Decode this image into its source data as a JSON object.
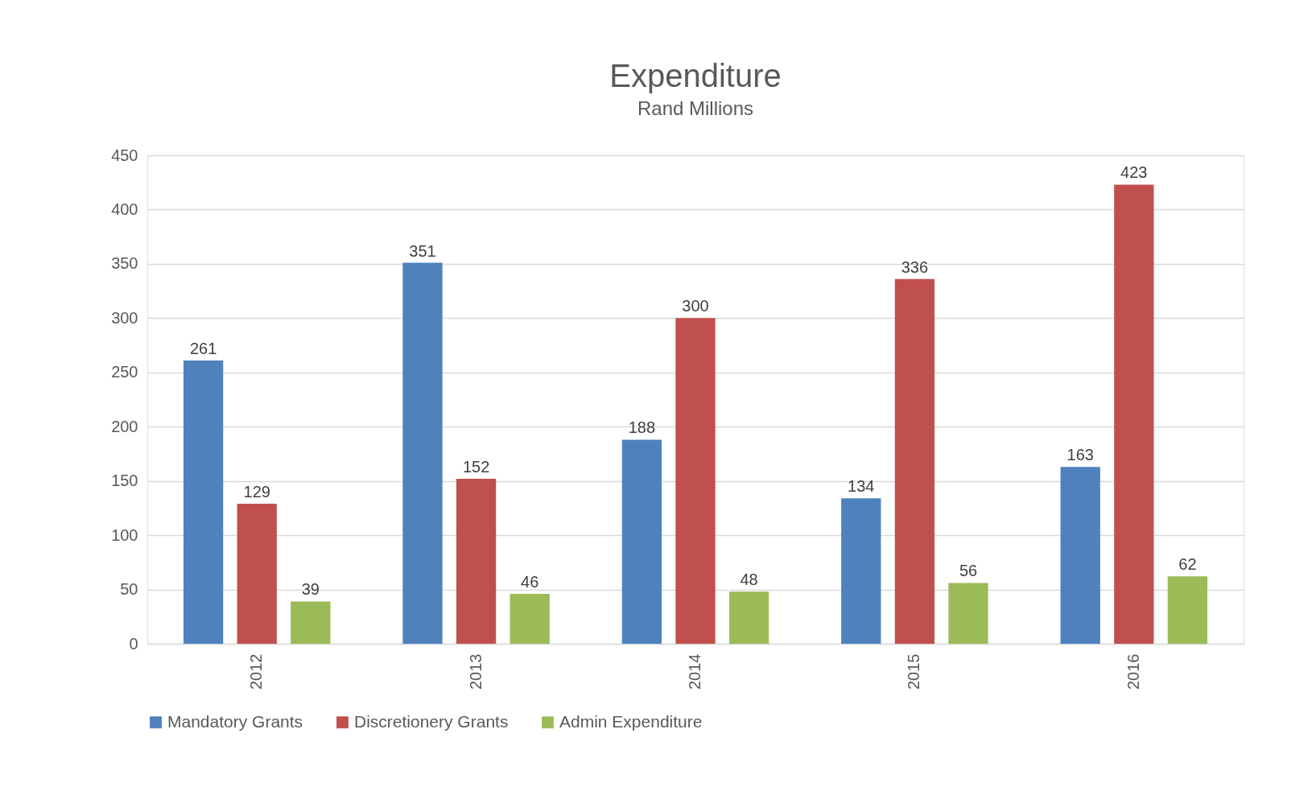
{
  "chart_data": {
    "type": "bar",
    "title": "Expenditure",
    "subtitle": "Rand Millions",
    "categories": [
      "2012",
      "2013",
      "2014",
      "2015",
      "2016"
    ],
    "series": [
      {
        "name": "Mandatory Grants",
        "color": "#4f81bd",
        "values": [
          261,
          351,
          188,
          134,
          163
        ]
      },
      {
        "name": "Discretionery Grants",
        "color": "#c0504d",
        "values": [
          129,
          152,
          300,
          336,
          423
        ]
      },
      {
        "name": "Admin Expenditure",
        "color": "#9bbb59",
        "values": [
          39,
          46,
          48,
          56,
          62
        ]
      }
    ],
    "ylim": [
      0,
      450
    ],
    "yticks": [
      0,
      50,
      100,
      150,
      200,
      250,
      300,
      350,
      400,
      450
    ],
    "grid": "y",
    "legend": "bottom",
    "data_labels": true
  }
}
